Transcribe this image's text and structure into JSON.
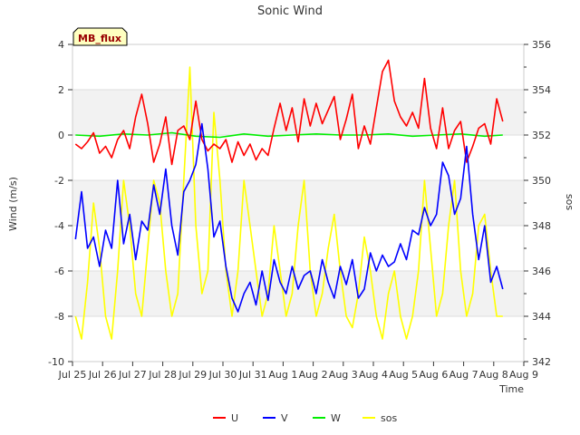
{
  "chart_data": {
    "type": "line",
    "title": "Sonic Wind",
    "xlabel": "Time",
    "ylabel": "Wind (m/s)",
    "y2label": "sos",
    "badge": "MB_flux",
    "xlim": [
      0,
      15
    ],
    "ylim": [
      -10,
      4
    ],
    "y2lim": [
      342,
      356
    ],
    "xticks": [
      {
        "pos": 0,
        "label": "Jul 25"
      },
      {
        "pos": 1,
        "label": "Jul 26"
      },
      {
        "pos": 2,
        "label": "Jul 27"
      },
      {
        "pos": 3,
        "label": "Jul 28"
      },
      {
        "pos": 4,
        "label": "Jul 29"
      },
      {
        "pos": 5,
        "label": "Jul 30"
      },
      {
        "pos": 6,
        "label": "Jul 31"
      },
      {
        "pos": 7,
        "label": "Aug 1"
      },
      {
        "pos": 8,
        "label": "Aug 2"
      },
      {
        "pos": 9,
        "label": "Aug 3"
      },
      {
        "pos": 10,
        "label": "Aug 4"
      },
      {
        "pos": 11,
        "label": "Aug 5"
      },
      {
        "pos": 12,
        "label": "Aug 6"
      },
      {
        "pos": 13,
        "label": "Aug 7"
      },
      {
        "pos": 14,
        "label": "Aug 8"
      },
      {
        "pos": 15,
        "label": "Aug 9"
      }
    ],
    "yticks": [
      -10,
      -8,
      -6,
      -4,
      -2,
      0,
      2,
      4
    ],
    "y2ticks": [
      342,
      344,
      346,
      348,
      350,
      352,
      354,
      356
    ],
    "legend_position": "bottom",
    "series": [
      {
        "name": "U",
        "axis": "left",
        "color": "#ff0000",
        "x": [
          0.1,
          0.3,
          0.5,
          0.7,
          0.9,
          1.1,
          1.3,
          1.5,
          1.7,
          1.9,
          2.1,
          2.3,
          2.5,
          2.7,
          2.9,
          3.1,
          3.3,
          3.5,
          3.7,
          3.9,
          4.1,
          4.3,
          4.5,
          4.7,
          4.9,
          5.1,
          5.3,
          5.5,
          5.7,
          5.9,
          6.1,
          6.3,
          6.5,
          6.7,
          6.9,
          7.1,
          7.3,
          7.5,
          7.7,
          7.9,
          8.1,
          8.3,
          8.5,
          8.7,
          8.9,
          9.1,
          9.3,
          9.5,
          9.7,
          9.9,
          10.1,
          10.3,
          10.5,
          10.7,
          10.9,
          11.1,
          11.3,
          11.5,
          11.7,
          11.9,
          12.1,
          12.3,
          12.5,
          12.7,
          12.9,
          13.1,
          13.3,
          13.5,
          13.7,
          13.9,
          14.1,
          14.3
        ],
        "y": [
          -0.4,
          -0.6,
          -0.3,
          0.1,
          -0.8,
          -0.5,
          -1.0,
          -0.2,
          0.2,
          -0.6,
          0.8,
          1.8,
          0.5,
          -1.2,
          -0.4,
          0.8,
          -1.3,
          0.2,
          0.4,
          -0.2,
          1.5,
          -0.2,
          -0.7,
          -0.4,
          -0.6,
          -0.2,
          -1.2,
          -0.3,
          -0.9,
          -0.4,
          -1.1,
          -0.6,
          -0.9,
          0.3,
          1.4,
          0.2,
          1.2,
          -0.3,
          1.6,
          0.4,
          1.4,
          0.5,
          1.1,
          1.7,
          -0.2,
          0.7,
          1.8,
          -0.6,
          0.4,
          -0.4,
          1.2,
          2.8,
          3.3,
          1.5,
          0.8,
          0.4,
          1.0,
          0.3,
          2.5,
          0.3,
          -0.6,
          1.2,
          -0.6,
          0.2,
          0.6,
          -1.2,
          -0.5,
          0.3,
          0.5,
          -0.4,
          1.6,
          0.6
        ]
      },
      {
        "name": "V",
        "axis": "left",
        "color": "#0000ff",
        "x": [
          0.1,
          0.3,
          0.5,
          0.7,
          0.9,
          1.1,
          1.3,
          1.5,
          1.7,
          1.9,
          2.1,
          2.3,
          2.5,
          2.7,
          2.9,
          3.1,
          3.3,
          3.5,
          3.7,
          3.9,
          4.1,
          4.3,
          4.5,
          4.7,
          4.9,
          5.1,
          5.3,
          5.5,
          5.7,
          5.9,
          6.1,
          6.3,
          6.5,
          6.7,
          6.9,
          7.1,
          7.3,
          7.5,
          7.7,
          7.9,
          8.1,
          8.3,
          8.5,
          8.7,
          8.9,
          9.1,
          9.3,
          9.5,
          9.7,
          9.9,
          10.1,
          10.3,
          10.5,
          10.7,
          10.9,
          11.1,
          11.3,
          11.5,
          11.7,
          11.9,
          12.1,
          12.3,
          12.5,
          12.7,
          12.9,
          13.1,
          13.3,
          13.5,
          13.7,
          13.9,
          14.1,
          14.3
        ],
        "y": [
          -4.6,
          -2.5,
          -5.0,
          -4.5,
          -5.8,
          -4.2,
          -5.0,
          -2.0,
          -4.8,
          -3.5,
          -5.5,
          -3.8,
          -4.2,
          -2.2,
          -3.5,
          -1.5,
          -4.0,
          -5.3,
          -2.5,
          -2.0,
          -1.3,
          0.5,
          -1.5,
          -4.5,
          -3.8,
          -5.8,
          -7.2,
          -7.8,
          -7.0,
          -6.5,
          -7.5,
          -6.0,
          -7.3,
          -5.5,
          -6.5,
          -7.0,
          -5.8,
          -6.8,
          -6.2,
          -6.0,
          -7.0,
          -5.5,
          -6.5,
          -7.2,
          -5.8,
          -6.6,
          -5.5,
          -7.2,
          -6.8,
          -5.2,
          -6.0,
          -5.3,
          -5.8,
          -5.6,
          -4.8,
          -5.5,
          -4.2,
          -4.4,
          -3.2,
          -4.0,
          -3.5,
          -1.2,
          -1.8,
          -3.5,
          -2.8,
          -0.5,
          -3.5,
          -5.5,
          -4.0,
          -6.5,
          -5.8,
          -6.8
        ]
      },
      {
        "name": "W",
        "axis": "left",
        "color": "#00ee00",
        "x": [
          0.1,
          0.9,
          1.7,
          2.5,
          3.3,
          4.1,
          4.9,
          5.7,
          6.5,
          7.3,
          8.1,
          8.9,
          9.7,
          10.5,
          11.3,
          12.1,
          12.9,
          13.7,
          14.3
        ],
        "y": [
          0.0,
          -0.05,
          0.05,
          0.0,
          0.1,
          -0.05,
          -0.1,
          0.05,
          -0.05,
          0.0,
          0.05,
          0.0,
          0.0,
          0.05,
          -0.05,
          0.0,
          0.05,
          -0.05,
          0.0
        ]
      },
      {
        "name": "sos",
        "axis": "right",
        "color": "#ffff00",
        "x": [
          0.1,
          0.3,
          0.5,
          0.7,
          0.9,
          1.1,
          1.3,
          1.5,
          1.7,
          1.9,
          2.1,
          2.3,
          2.5,
          2.7,
          2.9,
          3.1,
          3.3,
          3.5,
          3.7,
          3.9,
          4.1,
          4.3,
          4.5,
          4.7,
          4.9,
          5.1,
          5.3,
          5.5,
          5.7,
          5.9,
          6.1,
          6.3,
          6.5,
          6.7,
          6.9,
          7.1,
          7.3,
          7.5,
          7.7,
          7.9,
          8.1,
          8.3,
          8.5,
          8.7,
          8.9,
          9.1,
          9.3,
          9.5,
          9.7,
          9.9,
          10.1,
          10.3,
          10.5,
          10.7,
          10.9,
          11.1,
          11.3,
          11.5,
          11.7,
          11.9,
          12.1,
          12.3,
          12.5,
          12.7,
          12.9,
          13.1,
          13.3,
          13.5,
          13.7,
          13.9,
          14.1,
          14.3
        ],
        "y": [
          344,
          343,
          345.5,
          349,
          347,
          344,
          343,
          346,
          350,
          348,
          345,
          344,
          347,
          350,
          349,
          346,
          344,
          345,
          350,
          355,
          348,
          345,
          346,
          353,
          350,
          346,
          344,
          346,
          350,
          348,
          346,
          344,
          345,
          348,
          346,
          344,
          345,
          348,
          350,
          346,
          344,
          345,
          347,
          348.5,
          346,
          344,
          343.5,
          345,
          347.5,
          346,
          344,
          343,
          345,
          346,
          344,
          343,
          344,
          346,
          350,
          347,
          344,
          345,
          348,
          350,
          346,
          344,
          345,
          348,
          348.5,
          346,
          344,
          344
        ]
      }
    ]
  }
}
